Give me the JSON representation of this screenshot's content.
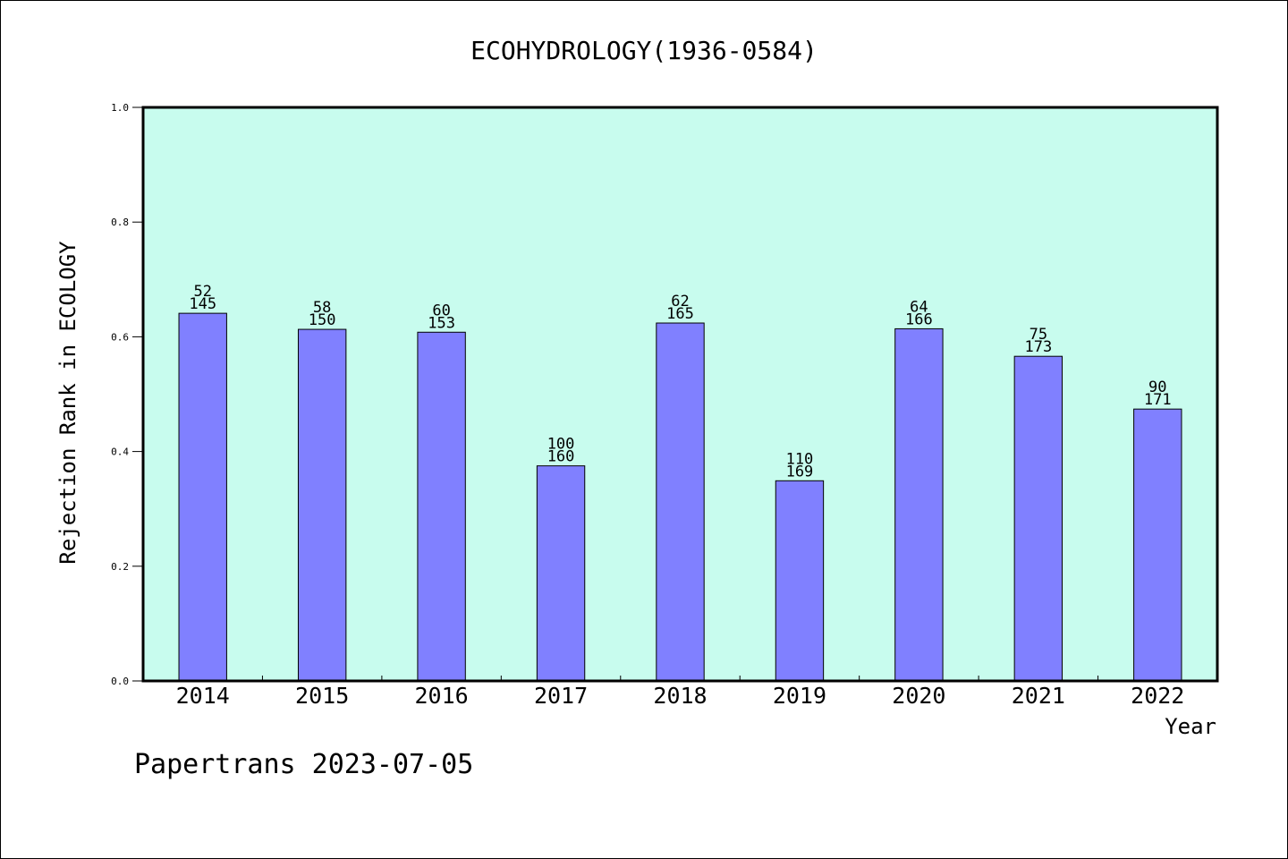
{
  "chart_data": {
    "type": "bar",
    "title": "ECOHYDROLOGY(1936-0584)",
    "xlabel": "Year",
    "ylabel": "Rejection Rank in ECOLOGY",
    "ylim": [
      0,
      1.0
    ],
    "yticks": [
      "0.0",
      "0.2",
      "0.4",
      "0.6",
      "0.8",
      "1.0"
    ],
    "categories": [
      "2014",
      "2015",
      "2016",
      "2017",
      "2018",
      "2019",
      "2020",
      "2021",
      "2022"
    ],
    "values": [
      0.641,
      0.613,
      0.608,
      0.375,
      0.624,
      0.349,
      0.614,
      0.566,
      0.474
    ],
    "labels_top": [
      "52",
      "58",
      "60",
      "100",
      "62",
      "110",
      "64",
      "75",
      "90"
    ],
    "labels_bottom": [
      "145",
      "150",
      "153",
      "160",
      "165",
      "169",
      "166",
      "173",
      "171"
    ],
    "grid": false,
    "legend": "none",
    "colors": {
      "bar": "#8080ff",
      "plot_background": "#c8fcee",
      "axis": "#000000",
      "text": "#000000"
    }
  },
  "footer": {
    "text": "Papertrans 2023-07-05"
  }
}
